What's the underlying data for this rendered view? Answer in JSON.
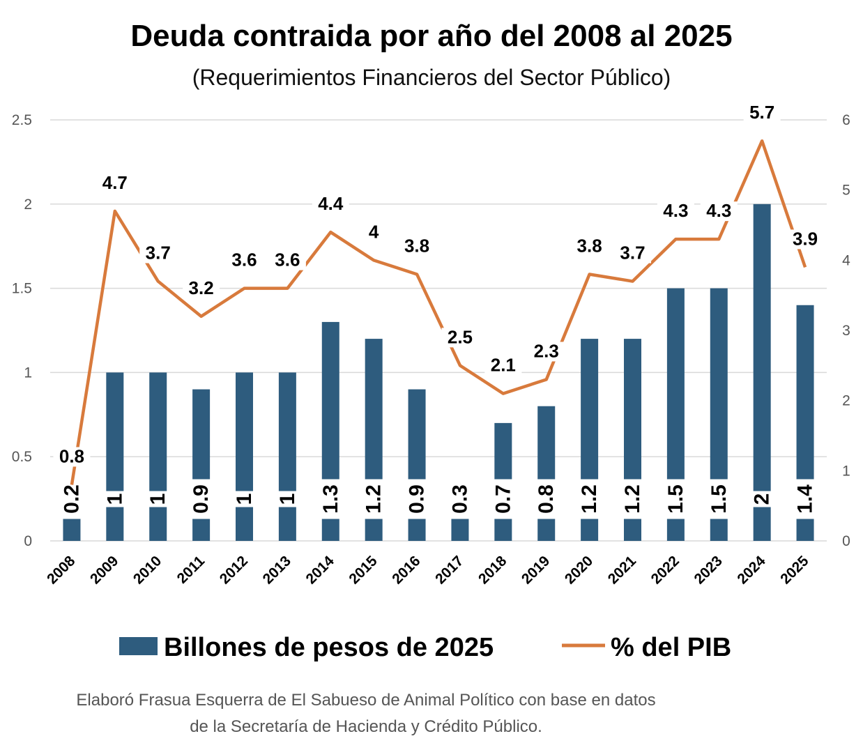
{
  "chart_data": {
    "type": "bar",
    "title": "Deuda contraida por año del 2008 al 2025",
    "subtitle": "(Requerimientos Financieros del Sector Público)",
    "categories": [
      "2008",
      "2009",
      "2010",
      "2011",
      "2012",
      "2013",
      "2014",
      "2015",
      "2016",
      "2017",
      "2018",
      "2019",
      "2020",
      "2021",
      "2022",
      "2023",
      "2024",
      "2025"
    ],
    "series": [
      {
        "name": "Billones de pesos de 2025",
        "type": "bar",
        "axis": "left",
        "color": "#2e5c7e",
        "values": [
          0.2,
          1,
          1,
          0.9,
          1,
          1,
          1.3,
          1.2,
          0.9,
          0.3,
          0.7,
          0.8,
          1.2,
          1.2,
          1.5,
          1.5,
          2,
          1.4
        ],
        "labels": [
          "0.2",
          "1",
          "1",
          "0.9",
          "1",
          "1",
          "1.3",
          "1.2",
          "0.9",
          "0.3",
          "0.7",
          "0.8",
          "1.2",
          "1.2",
          "1.5",
          "1.5",
          "2",
          "1.4"
        ]
      },
      {
        "name": "% del PIB",
        "type": "line",
        "axis": "right",
        "color": "#d87a3c",
        "values": [
          0.8,
          4.7,
          3.7,
          3.2,
          3.6,
          3.6,
          4.4,
          4,
          3.8,
          2.5,
          2.1,
          2.3,
          3.8,
          3.7,
          4.3,
          4.3,
          5.7,
          3.9
        ],
        "labels": [
          "0.8",
          "4.7",
          "3.7",
          "3.2",
          "3.6",
          "3.6",
          "4.4",
          "4",
          "3.8",
          "2.5",
          "2.1",
          "2.3",
          "3.8",
          "3.7",
          "4.3",
          "4.3",
          "5.7",
          "3.9"
        ]
      }
    ],
    "y_left": {
      "range": [
        0,
        2.5
      ],
      "ticks": [
        "0",
        "0.5",
        "1",
        "1.5",
        "2",
        "2.5"
      ]
    },
    "y_right": {
      "range": [
        0,
        6
      ],
      "ticks": [
        "0",
        "1",
        "2",
        "3",
        "4",
        "5",
        "6"
      ]
    },
    "grid": true,
    "legend_position": "bottom",
    "source": [
      "Elaboró Frasua Esquerra de El Sabueso de Animal Político con base en datos",
      "de la Secretaría de Hacienda y Crédito Público."
    ]
  }
}
